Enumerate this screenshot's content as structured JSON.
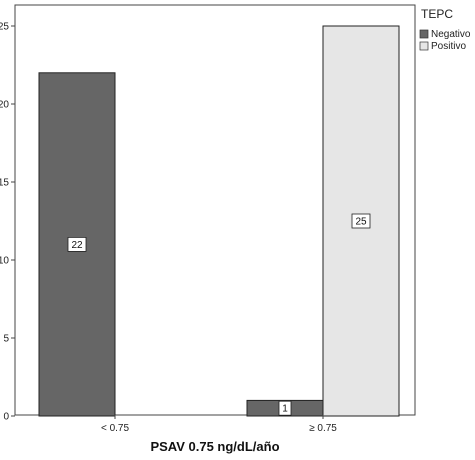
{
  "chart_data": {
    "type": "bar",
    "categories": [
      "< 0.75",
      "≥ 0.75"
    ],
    "series": [
      {
        "name": "Negativo",
        "values": [
          22,
          1
        ],
        "color": "#666666"
      },
      {
        "name": "Positivo",
        "values": [
          0,
          25
        ],
        "color": "#e6e6e6"
      }
    ],
    "xlabel": "PSAV 0.75 ng/dL/año",
    "ylabel": "",
    "ylim": [
      0,
      26
    ],
    "yticks": [
      0,
      5,
      10,
      15,
      20,
      25
    ],
    "legend": {
      "title": "TEPC",
      "placement": "top-right"
    },
    "grid": false
  }
}
